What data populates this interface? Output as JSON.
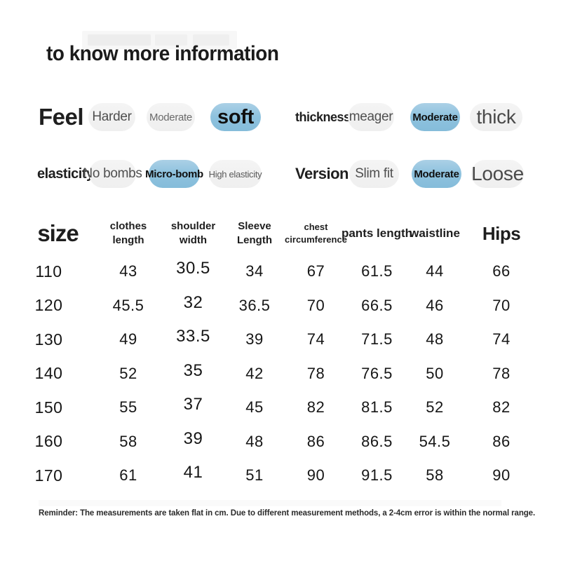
{
  "colors": {
    "accent_blue": "#8ec2de",
    "pill_grey": "#f1f1f1",
    "text_dark": "#1f1f1f",
    "page_background": "#ffffff"
  },
  "header": {
    "title": "to know more information"
  },
  "selector_rows": [
    {
      "groups": [
        {
          "label": "Feel",
          "options": [
            {
              "label": "Harder",
              "selected": false,
              "emphasis": "medium"
            },
            {
              "label": "Moderate",
              "selected": false,
              "emphasis": "small"
            },
            {
              "label": "soft",
              "selected": true,
              "emphasis": "large"
            }
          ]
        },
        {
          "label": "thickness",
          "options": [
            {
              "label": "meager",
              "selected": false,
              "emphasis": "medium"
            },
            {
              "label": "Moderate",
              "selected": true,
              "emphasis": "small"
            },
            {
              "label": "thick",
              "selected": false,
              "emphasis": "large"
            }
          ]
        }
      ]
    },
    {
      "groups": [
        {
          "label": "elasticity",
          "options": [
            {
              "label": "No bombs",
              "selected": false,
              "emphasis": "medium"
            },
            {
              "label": "Micro-bomb",
              "selected": true,
              "emphasis": "small"
            },
            {
              "label": "High elasticity",
              "selected": false,
              "emphasis": "xsmall"
            }
          ]
        },
        {
          "label": "Version",
          "options": [
            {
              "label": "Slim fit",
              "selected": false,
              "emphasis": "medium"
            },
            {
              "label": "Moderate",
              "selected": true,
              "emphasis": "small"
            },
            {
              "label": "Loose",
              "selected": false,
              "emphasis": "large"
            }
          ]
        }
      ]
    }
  ],
  "size_table": {
    "columns": [
      "size",
      "clothes length",
      "shoulder width",
      "Sleeve Length",
      "chest circumference",
      "pants length",
      "waistline",
      "Hips"
    ],
    "rows": [
      [
        "110",
        "43",
        "30.5",
        "34",
        "67",
        "61.5",
        "44",
        "66"
      ],
      [
        "120",
        "45.5",
        "32",
        "36.5",
        "70",
        "66.5",
        "46",
        "70"
      ],
      [
        "130",
        "49",
        "33.5",
        "39",
        "74",
        "71.5",
        "48",
        "74"
      ],
      [
        "140",
        "52",
        "35",
        "42",
        "78",
        "76.5",
        "50",
        "78"
      ],
      [
        "150",
        "55",
        "37",
        "45",
        "82",
        "81.5",
        "52",
        "82"
      ],
      [
        "160",
        "58",
        "39",
        "48",
        "86",
        "86.5",
        "54.5",
        "86"
      ],
      [
        "170",
        "61",
        "41",
        "51",
        "90",
        "91.5",
        "58",
        "90"
      ]
    ],
    "unit_note": "cm"
  },
  "reminder": "Reminder: The measurements are taken flat in cm. Due to different measurement methods, a 2-4cm error is within the normal range."
}
